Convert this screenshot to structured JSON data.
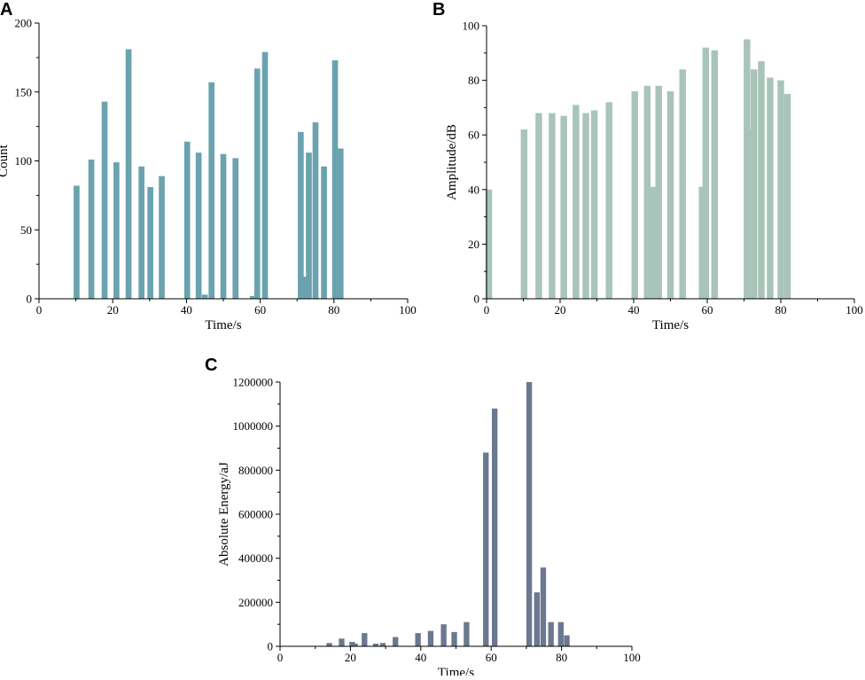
{
  "chart_data": [
    {
      "panel": "A",
      "type": "bar",
      "color": "#6aa3af",
      "xlabel": "Time/s",
      "ylabel": "Count",
      "xlim": [
        0,
        100
      ],
      "ylim": [
        0,
        200
      ],
      "xticks": [
        0,
        20,
        40,
        60,
        80,
        100
      ],
      "yticks": [
        0,
        50,
        100,
        150,
        200
      ],
      "bar_width": 1.6,
      "x": [
        10.2,
        14.2,
        17.8,
        21.0,
        24.3,
        27.8,
        30.2,
        33.3,
        40.2,
        43.3,
        45.0,
        46.8,
        50.0,
        53.3,
        58.0,
        59.2,
        61.3,
        71.0,
        71.8,
        73.2,
        75.0,
        77.3,
        80.3,
        81.8
      ],
      "values": [
        82,
        101,
        143,
        99,
        181,
        96,
        81,
        89,
        114,
        106,
        3,
        157,
        105,
        102,
        2,
        167,
        179,
        121,
        16,
        106,
        128,
        96,
        173,
        109
      ]
    },
    {
      "panel": "B",
      "type": "bar",
      "color": "#a9c4b9",
      "xlabel": "Time/s",
      "ylabel": "Amplitude/dB",
      "xlim": [
        0,
        100
      ],
      "ylim": [
        0,
        100
      ],
      "xticks": [
        0,
        20,
        40,
        60,
        80,
        100
      ],
      "yticks": [
        0,
        20,
        40,
        60,
        80,
        100
      ],
      "bar_width": 1.8,
      "x": [
        0.6,
        10.2,
        14.2,
        17.8,
        21.0,
        24.3,
        27.0,
        29.3,
        33.3,
        40.3,
        43.7,
        45.2,
        46.8,
        50.0,
        53.3,
        58.6,
        59.6,
        62.0,
        70.8,
        71.5,
        72.7,
        74.7,
        77.1,
        80.0,
        81.8
      ],
      "values": [
        40,
        62,
        68,
        68,
        67,
        71,
        68,
        69,
        72,
        76,
        78,
        41,
        78,
        76,
        84,
        41,
        92,
        91,
        95,
        62,
        84,
        87,
        81,
        80,
        75
      ]
    },
    {
      "panel": "C",
      "type": "bar",
      "color": "#6a7890",
      "xlabel": "Time/s",
      "ylabel": "Absolute Energy/aJ",
      "xlim": [
        0,
        100
      ],
      "ylim": [
        0,
        1200000
      ],
      "xticks": [
        0,
        20,
        40,
        60,
        80,
        100
      ],
      "yticks": [
        0,
        200000,
        400000,
        600000,
        800000,
        1000000,
        1200000
      ],
      "bar_width": 1.6,
      "x": [
        14.0,
        17.5,
        20.5,
        21.3,
        24.0,
        27.2,
        29.2,
        32.8,
        39.2,
        42.8,
        46.5,
        49.5,
        53.0,
        58.5,
        61.0,
        70.8,
        73.0,
        74.8,
        77.0,
        79.8,
        81.5
      ],
      "values": [
        15000,
        35000,
        20000,
        12000,
        60000,
        12000,
        15000,
        42000,
        60000,
        70000,
        100000,
        65000,
        110000,
        880000,
        1080000,
        1200000,
        245000,
        358000,
        110000,
        110000,
        50000
      ]
    }
  ]
}
